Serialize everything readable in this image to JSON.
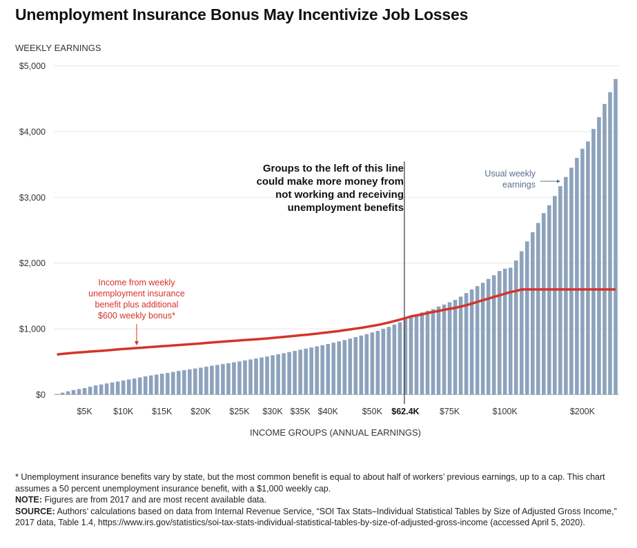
{
  "chart_data": {
    "type": "bar",
    "title": "Unemployment Insurance Bonus May Incentivize Job Losses",
    "ylabel": "WEEKLY EARNINGS",
    "xlabel": "INCOME GROUPS (ANNUAL EARNINGS)",
    "ylim": [
      0,
      5000
    ],
    "grid": true,
    "yticks": [
      {
        "value": 0,
        "label": "$0"
      },
      {
        "value": 1000,
        "label": "$1,000"
      },
      {
        "value": 2000,
        "label": "$2,000"
      },
      {
        "value": 3000,
        "label": "$3,000"
      },
      {
        "value": 4000,
        "label": "$4,000"
      },
      {
        "value": 5000,
        "label": "$5,000"
      }
    ],
    "xticks": [
      {
        "bar_index": 5,
        "label": "$5K",
        "bold": false
      },
      {
        "bar_index": 12,
        "label": "$10K",
        "bold": false
      },
      {
        "bar_index": 19,
        "label": "$15K",
        "bold": false
      },
      {
        "bar_index": 26,
        "label": "$20K",
        "bold": false
      },
      {
        "bar_index": 33,
        "label": "$25K",
        "bold": false
      },
      {
        "bar_index": 39,
        "label": "$30K",
        "bold": false
      },
      {
        "bar_index": 44,
        "label": "$35K",
        "bold": false
      },
      {
        "bar_index": 49,
        "label": "$40K",
        "bold": false
      },
      {
        "bar_index": 57,
        "label": "$50K",
        "bold": false
      },
      {
        "bar_index": 63,
        "label": "$62.4K",
        "bold": true
      },
      {
        "bar_index": 71,
        "label": "$75K",
        "bold": false
      },
      {
        "bar_index": 81,
        "label": "$100K",
        "bold": false
      },
      {
        "bar_index": 95,
        "label": "$200K",
        "bold": false
      }
    ],
    "series": [
      {
        "name": "Usual weekly earnings",
        "type": "bar",
        "color": "#8da2bc",
        "values": [
          10,
          30,
          50,
          70,
          85,
          100,
          120,
          140,
          155,
          170,
          185,
          200,
          215,
          230,
          245,
          262,
          278,
          292,
          305,
          318,
          330,
          345,
          360,
          372,
          385,
          398,
          410,
          425,
          440,
          452,
          465,
          478,
          492,
          505,
          520,
          535,
          550,
          565,
          580,
          598,
          615,
          630,
          648,
          665,
          682,
          700,
          718,
          735,
          752,
          770,
          790,
          810,
          830,
          852,
          875,
          898,
          920,
          945,
          970,
          1000,
          1030,
          1065,
          1100,
          1150,
          1190,
          1220,
          1250,
          1275,
          1300,
          1340,
          1370,
          1405,
          1440,
          1490,
          1545,
          1600,
          1650,
          1700,
          1760,
          1815,
          1880,
          1915,
          1930,
          2040,
          2180,
          2330,
          2470,
          2610,
          2760,
          2880,
          3020,
          3170,
          3310,
          3450,
          3600,
          3740,
          3850,
          4040,
          4220,
          4420,
          4600,
          4800
        ]
      },
      {
        "name": "Income from weekly unemployment insurance benefit plus additional $600 weekly bonus*",
        "type": "line",
        "color": "#d5332a",
        "values": [
          610,
          620,
          628,
          635,
          642,
          648,
          655,
          660,
          666,
          672,
          680,
          688,
          694,
          700,
          706,
          712,
          718,
          724,
          730,
          736,
          742,
          748,
          754,
          760,
          766,
          772,
          778,
          786,
          792,
          800,
          806,
          812,
          818,
          824,
          830,
          836,
          842,
          848,
          854,
          862,
          870,
          878,
          886,
          894,
          902,
          910,
          918,
          928,
          938,
          948,
          958,
          968,
          980,
          992,
          1004,
          1016,
          1030,
          1044,
          1060,
          1078,
          1098,
          1118,
          1140,
          1165,
          1190,
          1205,
          1220,
          1240,
          1258,
          1272,
          1290,
          1305,
          1320,
          1340,
          1360,
          1385,
          1410,
          1435,
          1460,
          1485,
          1510,
          1535,
          1560,
          1575,
          1600,
          1600,
          1600,
          1600,
          1600,
          1600,
          1600,
          1600,
          1600,
          1600,
          1600,
          1600,
          1600,
          1600,
          1600,
          1600,
          1600,
          1600
        ]
      }
    ],
    "marker_line": {
      "bar_index": 63,
      "label": "$62.4K"
    },
    "annotations": {
      "threshold": [
        "Groups to the left of this line",
        "could make more money from",
        "not working and receiving",
        "unemployment benefits"
      ],
      "red_line": [
        "Income from weekly",
        "unemployment insurance",
        "benefit plus additional",
        "$600 weekly bonus*"
      ],
      "bars": [
        "Usual weekly",
        "earnings"
      ]
    }
  },
  "footnotes": {
    "asterisk": "* Unemployment insurance benefits vary by state, but the most common benefit is equal to about half of workers’ previous earnings, up to a cap. This chart assumes a 50 percent unemployment insurance benefit, with a $1,000 weekly cap.",
    "note_label": "NOTE:",
    "note": " Figures are from 2017 and are most recent available data.",
    "source_label": "SOURCE:",
    "source": " Authors’ calculations based on data from Internal Revenue Service, “SOI Tax Stats–Individual Statistical Tables by Size of Adjusted Gross Income,” 2017 data, Table 1.4, https://www.irs.gov/statistics/soi-tax-stats-individual-statistical-tables-by-size-of-adjusted-gross-income (accessed April 5, 2020)."
  },
  "colors": {
    "bar": "#8da2bc",
    "line": "#d5332a",
    "grid": "#e6e6e6",
    "marker": "#444444"
  }
}
